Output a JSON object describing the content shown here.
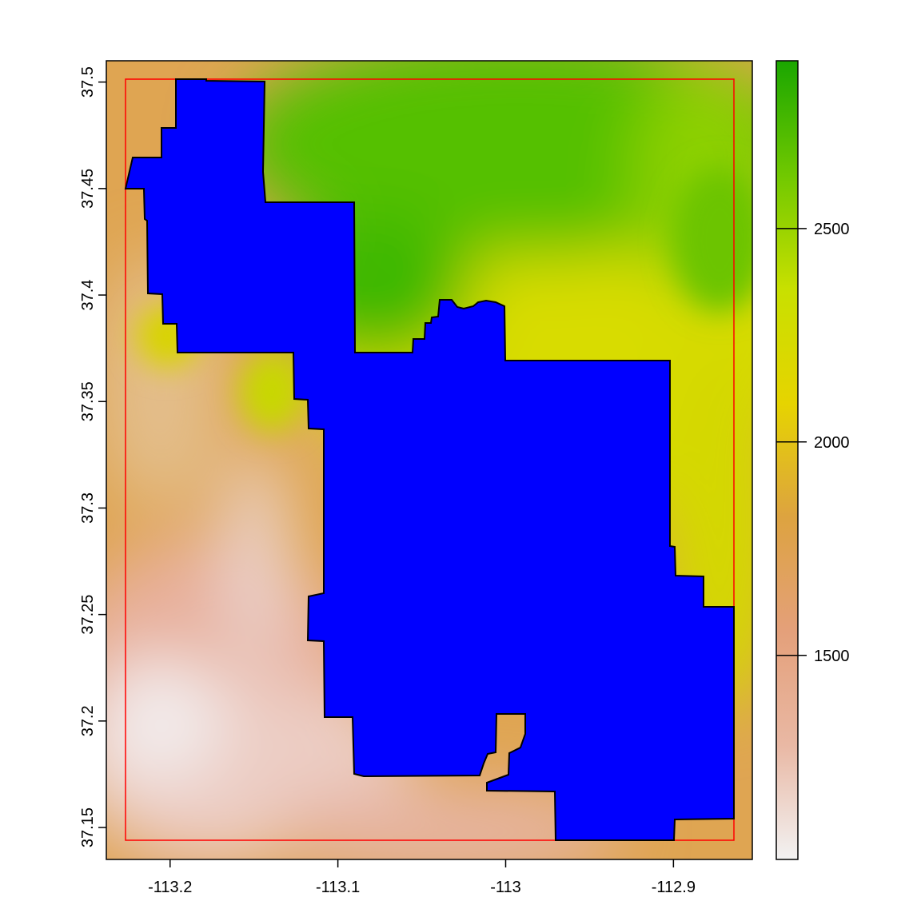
{
  "map": {
    "xlim": [
      -113.238,
      -112.853
    ],
    "ylim": [
      37.135,
      37.51
    ],
    "xticks": [
      -113.2,
      -113.1,
      -113,
      -112.9
    ],
    "yticks": [
      37.15,
      37.2,
      37.25,
      37.3,
      37.35,
      37.4,
      37.45,
      37.5
    ],
    "colorbar": {
      "lim": [
        1022,
        2893
      ],
      "ticks": [
        1500,
        2000,
        2500
      ],
      "colors": [
        "#f2f2f2",
        "#e9b8a4",
        "#e4a07a",
        "#dda340",
        "#e6d400",
        "#c8e000",
        "#70c800",
        "#1aa600"
      ]
    }
  }
}
